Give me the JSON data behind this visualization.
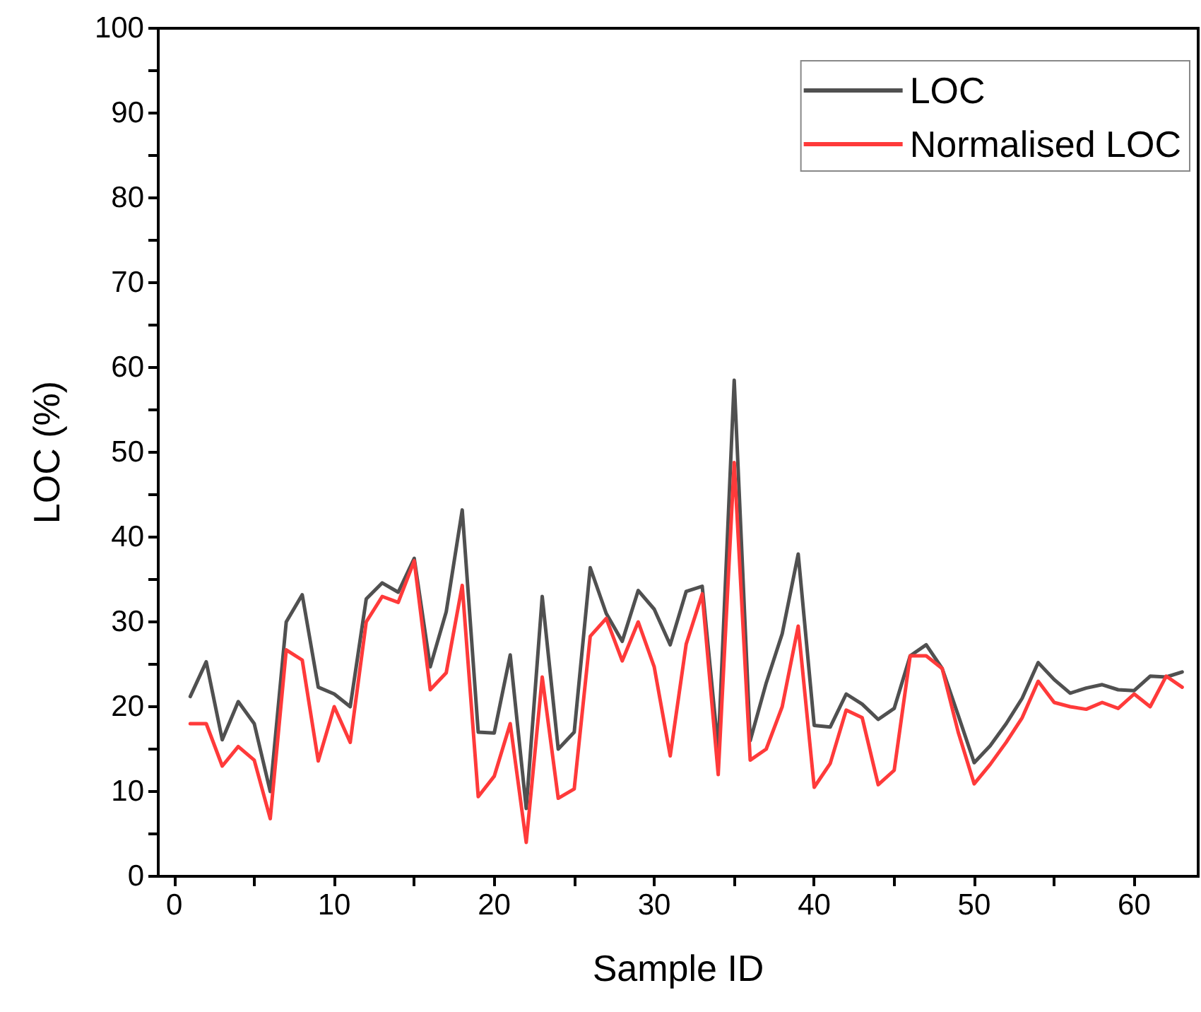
{
  "chart_data": {
    "type": "line",
    "xlabel": "Sample ID",
    "ylabel": "LOC (%)",
    "x": [
      1,
      2,
      3,
      4,
      5,
      6,
      7,
      8,
      9,
      10,
      11,
      12,
      13,
      14,
      15,
      16,
      17,
      18,
      19,
      20,
      21,
      22,
      23,
      24,
      25,
      26,
      27,
      28,
      29,
      30,
      31,
      32,
      33,
      34,
      35,
      36,
      37,
      38,
      39,
      40,
      41,
      42,
      43,
      44,
      45,
      46,
      47,
      48,
      49,
      50,
      51,
      52,
      53,
      54,
      55,
      56,
      57,
      58,
      59,
      60,
      61,
      62,
      63
    ],
    "series": [
      {
        "name": "LOC",
        "color": "#505050",
        "values": [
          21.2,
          25.3,
          16.1,
          20.6,
          18,
          10,
          30,
          33.2,
          22.3,
          21.5,
          20,
          32.7,
          34.6,
          33.5,
          37.5,
          24.7,
          31.2,
          43.2,
          17,
          16.9,
          26.1,
          8,
          33,
          15,
          17,
          36.4,
          31,
          27.7,
          33.7,
          31.5,
          27.3,
          33.6,
          34.2,
          15,
          58.5,
          16,
          22.8,
          28.6,
          38,
          17.8,
          17.6,
          21.5,
          20.3,
          18.5,
          19.8,
          26,
          27.3,
          24.5,
          19,
          13.4,
          15.4,
          18,
          21,
          25.2,
          23.2,
          21.6,
          22.2,
          22.6,
          22,
          21.9,
          23.6,
          23.5,
          24.1
        ]
      },
      {
        "name": "Normalised LOC",
        "color": "#ff3a3a",
        "values": [
          18,
          18,
          13,
          15.3,
          13.7,
          6.8,
          26.7,
          25.5,
          13.6,
          20,
          15.8,
          30,
          33,
          32.3,
          37.2,
          22,
          24,
          34.3,
          9.4,
          11.8,
          18,
          4,
          23.5,
          9.2,
          10.3,
          28.3,
          30.4,
          25.4,
          30,
          24.7,
          14.2,
          27.4,
          33.3,
          12,
          48.8,
          13.7,
          15,
          20,
          29.5,
          10.5,
          13.3,
          19.6,
          18.7,
          10.8,
          12.5,
          26,
          26,
          24.5,
          17,
          10.9,
          13.2,
          15.8,
          18.7,
          23,
          20.5,
          20,
          19.7,
          20.5,
          19.8,
          21.5,
          20,
          23.6,
          22.3
        ]
      }
    ],
    "xlim": [
      -1,
      64
    ],
    "xticks": [
      0,
      {
        "value": 5,
        "label": null
      },
      10,
      {
        "value": 15,
        "label": null
      },
      20,
      {
        "value": 25,
        "label": null
      },
      30,
      {
        "value": 35,
        "label": null
      },
      40,
      {
        "value": 45,
        "label": null
      },
      50,
      {
        "value": 55,
        "label": null
      },
      60
    ],
    "ylim": [
      0,
      100
    ],
    "yticks": [
      0,
      {
        "value": 5,
        "label": null
      },
      10,
      {
        "value": 15,
        "label": null
      },
      20,
      {
        "value": 25,
        "label": null
      },
      30,
      {
        "value": 35,
        "label": null
      },
      40,
      {
        "value": 45,
        "label": null
      },
      50,
      {
        "value": 55,
        "label": null
      },
      60,
      {
        "value": 65,
        "label": null
      },
      70,
      {
        "value": 75,
        "label": null
      },
      80,
      {
        "value": 85,
        "label": null
      },
      90,
      {
        "value": 95,
        "label": null
      },
      100
    ],
    "legend": "top right",
    "grid": false,
    "marker": "none",
    "line_style": "solid"
  }
}
